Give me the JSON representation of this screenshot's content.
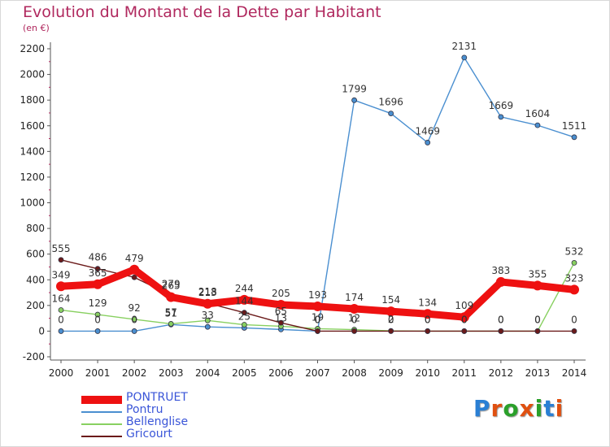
{
  "header": {
    "title": "Evolution du Montant de la Dette par Habitant",
    "unit": "(en €)"
  },
  "logo": {
    "letters": [
      "P",
      "r",
      "o",
      "x",
      "i",
      "t",
      "i"
    ]
  },
  "colors": {
    "title": "#b0285e",
    "logo": [
      "#2a7fd4",
      "#e05010",
      "#2aa02a",
      "#e05010",
      "#2aa02a",
      "#2a7fd4",
      "#e05010"
    ]
  },
  "chart_data": {
    "type": "line",
    "title": "Evolution du Montant de la Dette par Habitant",
    "xlabel": "",
    "ylabel": "(en €)",
    "x": [
      2000,
      2001,
      2002,
      2003,
      2004,
      2005,
      2006,
      2007,
      2008,
      2009,
      2010,
      2011,
      2012,
      2013,
      2014
    ],
    "ylim": [
      -200,
      2200
    ],
    "yticks": [
      -200,
      0,
      200,
      400,
      600,
      800,
      1000,
      1200,
      1400,
      1600,
      1800,
      2000,
      2200
    ],
    "grid": false,
    "legend_position": "bottom-left",
    "series": [
      {
        "name": "PONTRUET",
        "color": "#ee1111",
        "emphasis": true,
        "values": [
          349,
          365,
          479,
          265,
          213,
          244,
          205,
          193,
          174,
          154,
          134,
          109,
          383,
          355,
          323
        ],
        "labels": [
          "349",
          "365",
          "479",
          "265",
          "213",
          "244",
          "205",
          "193",
          "174",
          "154",
          "134",
          "109",
          "383",
          "355",
          "323"
        ]
      },
      {
        "name": "Pontru",
        "color": "#4a8fd0",
        "values": [
          0,
          0,
          0,
          51,
          33,
          25,
          13,
          0,
          1799,
          1696,
          1469,
          2131,
          1669,
          1604,
          1511
        ],
        "labels": [
          "0",
          "0",
          "0",
          "51",
          "33",
          "25",
          "13",
          "0",
          "1799",
          "1696",
          "1469",
          "2131",
          "1669",
          "1604",
          "1511"
        ]
      },
      {
        "name": "Bellenglise",
        "color": "#88d060",
        "values": [
          164,
          129,
          92,
          57,
          83,
          50,
          38,
          19,
          12,
          2,
          0,
          0,
          0,
          0,
          532
        ],
        "labels": [
          "164",
          "129",
          "92",
          "57",
          "",
          "",
          "",
          "19",
          "12",
          "2",
          "0",
          "0",
          "0",
          "0",
          "532"
        ]
      },
      {
        "name": "Gricourt",
        "color": "#6b1a1a",
        "values": [
          555,
          486,
          419,
          279,
          218,
          144,
          65,
          0,
          0,
          0,
          0,
          0,
          0,
          0,
          0
        ],
        "labels": [
          "555",
          "486",
          "",
          "279",
          "218",
          "144",
          "65",
          "0",
          "0",
          "0",
          "0",
          "0",
          "0",
          "0",
          "0"
        ]
      }
    ]
  }
}
